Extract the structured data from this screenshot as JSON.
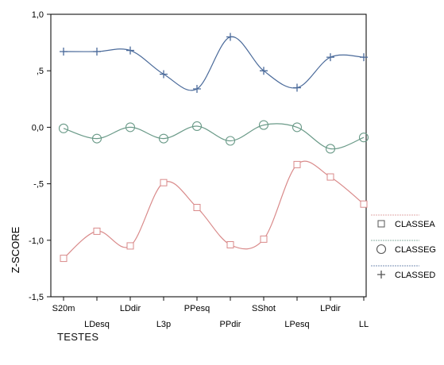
{
  "chart_data": {
    "type": "line",
    "categories": [
      "S20m",
      "LDesq",
      "LDdir",
      "L3p",
      "PPesq",
      "PPdir",
      "SShot",
      "LPesq",
      "LPdir",
      "LL"
    ],
    "xlabel": "TESTES",
    "ylabel": "Z-SCORE",
    "ylim": [
      -1.5,
      1.0
    ],
    "yticks": [
      1.0,
      0.5,
      0.0,
      -0.5,
      -1.0,
      -1.5
    ],
    "ytick_labels": [
      "1,0",
      ",5",
      "0,0",
      "-,5",
      "-1,0",
      "-1,5"
    ],
    "grid": false,
    "legend_position": "right",
    "series": [
      {
        "name": "CLASSEA",
        "marker": "square",
        "color": "#d98a8a",
        "x": [
          0,
          0.5,
          1,
          1.5,
          2,
          2.5,
          3,
          3.5,
          4,
          4.5
        ],
        "values": [
          -1.16,
          -0.92,
          -1.05,
          -0.49,
          -0.71,
          -1.04,
          -0.99,
          -0.33,
          -0.44,
          -0.68
        ]
      },
      {
        "name": "CLASSEG",
        "marker": "circle",
        "color": "#6a9a88",
        "x": [
          0,
          0.5,
          1,
          1.5,
          2,
          2.5,
          3,
          3.5,
          4,
          4.5
        ],
        "values": [
          -0.01,
          -0.1,
          0.0,
          -0.1,
          0.01,
          -0.12,
          0.02,
          0.0,
          -0.19,
          -0.09
        ]
      },
      {
        "name": "CLASSED",
        "marker": "plus",
        "color": "#4a6a9a",
        "x": [
          0,
          0.5,
          1,
          1.5,
          2,
          2.5,
          3,
          3.5,
          4,
          4.5
        ],
        "values": [
          0.67,
          0.67,
          0.68,
          0.47,
          0.34,
          0.8,
          0.5,
          0.35,
          0.62,
          0.62
        ]
      }
    ]
  }
}
